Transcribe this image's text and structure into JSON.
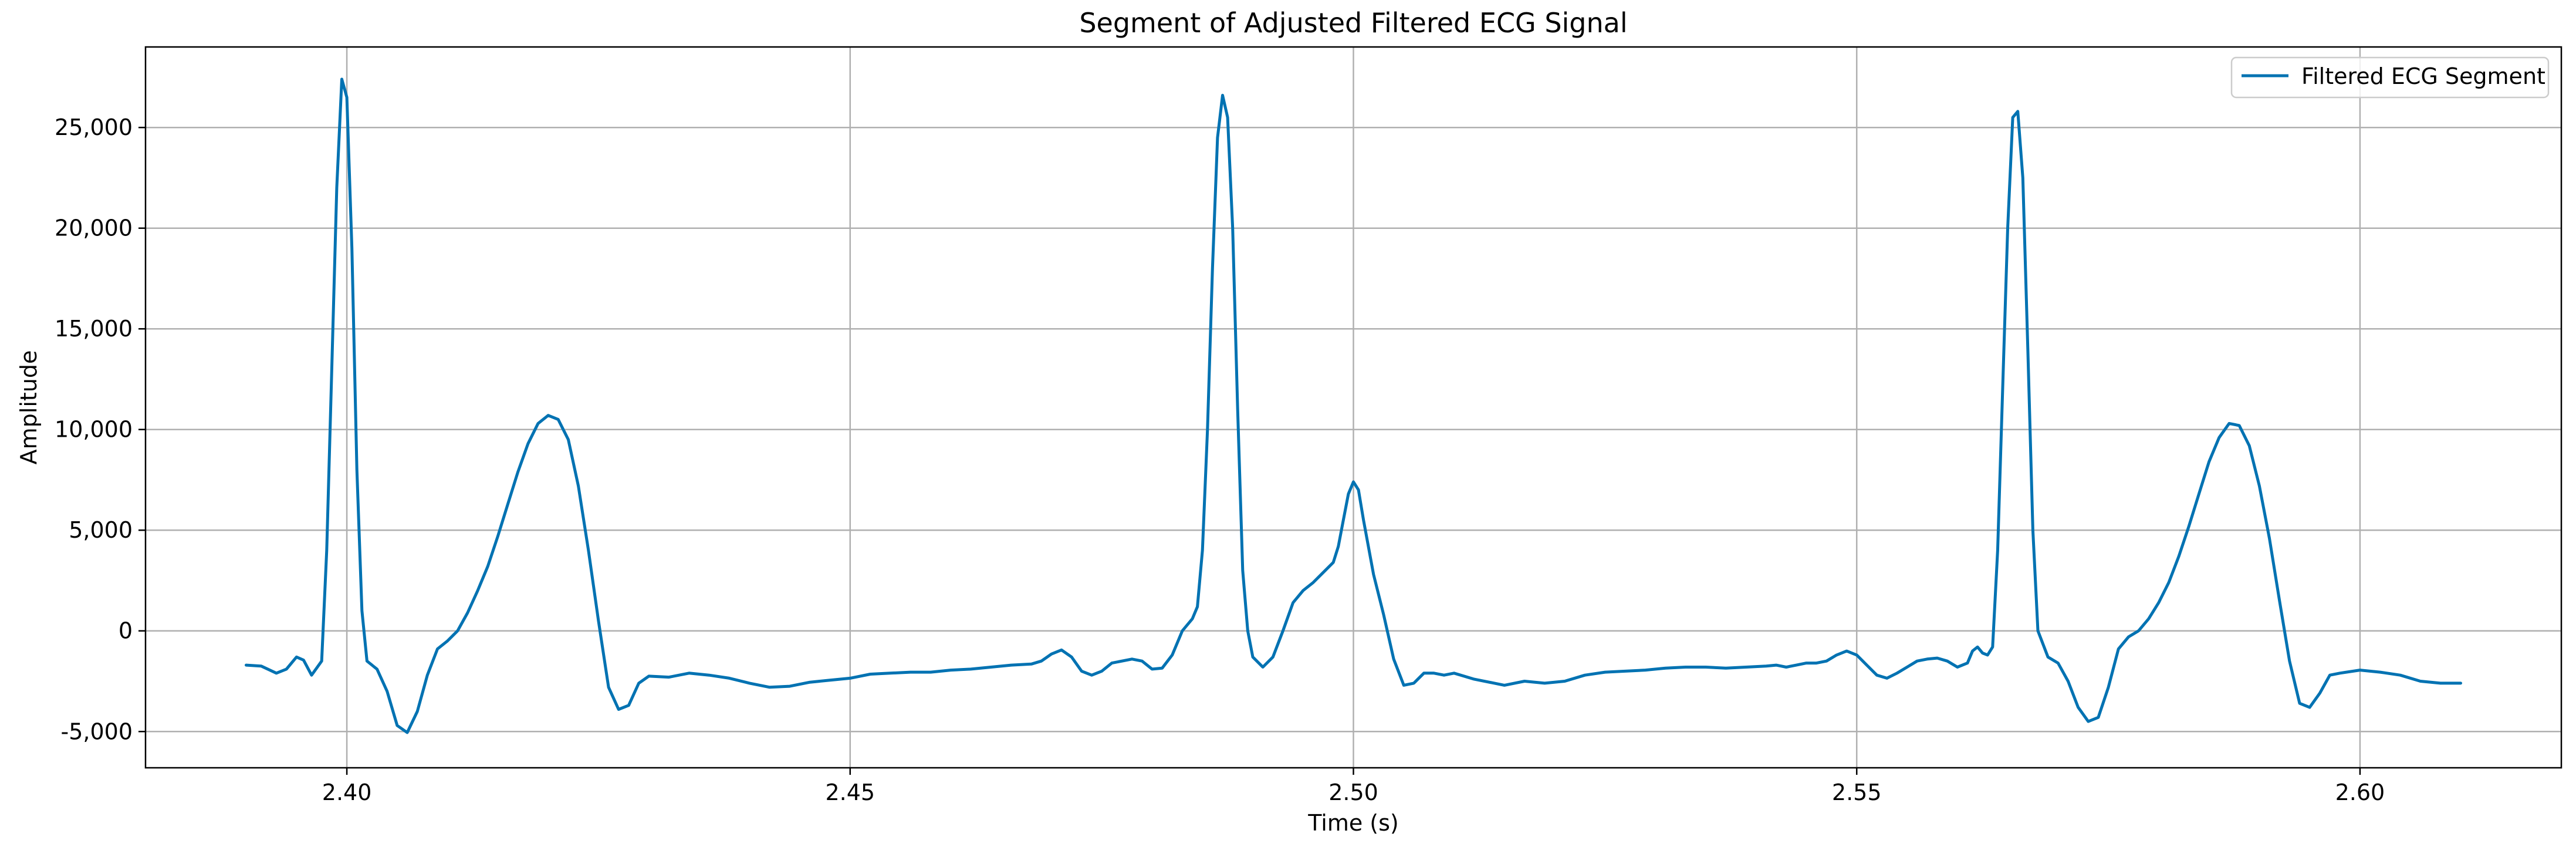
{
  "chart_data": {
    "type": "line",
    "title": "Segment of Adjusted Filtered ECG Signal",
    "xlabel": "Time (s)",
    "ylabel": "Amplitude",
    "xlim": [
      2.38,
      2.62
    ],
    "ylim": [
      -6800,
      29000
    ],
    "grid": true,
    "legend_position": "top-right",
    "x_ticks": [
      {
        "value": 2.4,
        "label": "2.40"
      },
      {
        "value": 2.45,
        "label": "2.45"
      },
      {
        "value": 2.5,
        "label": "2.50"
      },
      {
        "value": 2.55,
        "label": "2.55"
      },
      {
        "value": 2.6,
        "label": "2.60"
      }
    ],
    "y_ticks": [
      {
        "value": -5000,
        "label": "-5,000"
      },
      {
        "value": 0,
        "label": "0"
      },
      {
        "value": 5000,
        "label": "5,000"
      },
      {
        "value": 10000,
        "label": "10,000"
      },
      {
        "value": 15000,
        "label": "15,000"
      },
      {
        "value": 20000,
        "label": "20,000"
      },
      {
        "value": 25000,
        "label": "25,000"
      }
    ],
    "series": [
      {
        "name": "Filtered ECG Segment",
        "color": "#0072b2",
        "points": [
          [
            2.39,
            -1700
          ],
          [
            2.3915,
            -1750
          ],
          [
            2.393,
            -2100
          ],
          [
            2.394,
            -1900
          ],
          [
            2.395,
            -1300
          ],
          [
            2.3957,
            -1450
          ],
          [
            2.3965,
            -2200
          ],
          [
            2.3975,
            -1500
          ],
          [
            2.398,
            4000
          ],
          [
            2.3985,
            13000
          ],
          [
            2.399,
            22000
          ],
          [
            2.3995,
            27400
          ],
          [
            2.4,
            26500
          ],
          [
            2.4005,
            19000
          ],
          [
            2.401,
            8000
          ],
          [
            2.4015,
            1000
          ],
          [
            2.402,
            -1500
          ],
          [
            2.403,
            -1900
          ],
          [
            2.404,
            -3000
          ],
          [
            2.405,
            -4700
          ],
          [
            2.406,
            -5050
          ],
          [
            2.407,
            -4000
          ],
          [
            2.408,
            -2200
          ],
          [
            2.409,
            -900
          ],
          [
            2.41,
            -500
          ],
          [
            2.411,
            0
          ],
          [
            2.412,
            900
          ],
          [
            2.413,
            2000
          ],
          [
            2.414,
            3200
          ],
          [
            2.415,
            4700
          ],
          [
            2.416,
            6300
          ],
          [
            2.417,
            7900
          ],
          [
            2.418,
            9300
          ],
          [
            2.419,
            10300
          ],
          [
            2.42,
            10700
          ],
          [
            2.421,
            10500
          ],
          [
            2.422,
            9500
          ],
          [
            2.423,
            7200
          ],
          [
            2.424,
            4000
          ],
          [
            2.425,
            500
          ],
          [
            2.426,
            -2800
          ],
          [
            2.427,
            -3900
          ],
          [
            2.428,
            -3700
          ],
          [
            2.429,
            -2600
          ],
          [
            2.43,
            -2250
          ],
          [
            2.432,
            -2300
          ],
          [
            2.434,
            -2100
          ],
          [
            2.436,
            -2200
          ],
          [
            2.438,
            -2350
          ],
          [
            2.44,
            -2600
          ],
          [
            2.442,
            -2800
          ],
          [
            2.444,
            -2750
          ],
          [
            2.446,
            -2550
          ],
          [
            2.448,
            -2450
          ],
          [
            2.45,
            -2350
          ],
          [
            2.452,
            -2150
          ],
          [
            2.454,
            -2100
          ],
          [
            2.456,
            -2050
          ],
          [
            2.458,
            -2050
          ],
          [
            2.46,
            -1950
          ],
          [
            2.462,
            -1900
          ],
          [
            2.464,
            -1800
          ],
          [
            2.466,
            -1700
          ],
          [
            2.468,
            -1650
          ],
          [
            2.469,
            -1500
          ],
          [
            2.47,
            -1150
          ],
          [
            2.471,
            -950
          ],
          [
            2.472,
            -1300
          ],
          [
            2.473,
            -2000
          ],
          [
            2.474,
            -2200
          ],
          [
            2.475,
            -2000
          ],
          [
            2.476,
            -1600
          ],
          [
            2.478,
            -1400
          ],
          [
            2.479,
            -1500
          ],
          [
            2.48,
            -1900
          ],
          [
            2.481,
            -1850
          ],
          [
            2.482,
            -1200
          ],
          [
            2.483,
            0
          ],
          [
            2.484,
            600
          ],
          [
            2.4845,
            1200
          ],
          [
            2.485,
            4000
          ],
          [
            2.4855,
            10000
          ],
          [
            2.486,
            18000
          ],
          [
            2.4865,
            24500
          ],
          [
            2.487,
            26600
          ],
          [
            2.4875,
            25500
          ],
          [
            2.488,
            20000
          ],
          [
            2.4885,
            11000
          ],
          [
            2.489,
            3000
          ],
          [
            2.4895,
            0
          ],
          [
            2.49,
            -1300
          ],
          [
            2.491,
            -1800
          ],
          [
            2.492,
            -1300
          ],
          [
            2.493,
            0
          ],
          [
            2.494,
            1400
          ],
          [
            2.495,
            2000
          ],
          [
            2.496,
            2400
          ],
          [
            2.497,
            2900
          ],
          [
            2.498,
            3400
          ],
          [
            2.4985,
            4200
          ],
          [
            2.499,
            5500
          ],
          [
            2.4995,
            6800
          ],
          [
            2.5,
            7400
          ],
          [
            2.5005,
            7000
          ],
          [
            2.501,
            5500
          ],
          [
            2.502,
            2800
          ],
          [
            2.503,
            800
          ],
          [
            2.504,
            -1400
          ],
          [
            2.505,
            -2700
          ],
          [
            2.506,
            -2600
          ],
          [
            2.507,
            -2100
          ],
          [
            2.508,
            -2100
          ],
          [
            2.509,
            -2200
          ],
          [
            2.51,
            -2100
          ],
          [
            2.512,
            -2400
          ],
          [
            2.514,
            -2600
          ],
          [
            2.515,
            -2700
          ],
          [
            2.517,
            -2500
          ],
          [
            2.519,
            -2600
          ],
          [
            2.521,
            -2500
          ],
          [
            2.523,
            -2200
          ],
          [
            2.525,
            -2050
          ],
          [
            2.527,
            -2000
          ],
          [
            2.529,
            -1950
          ],
          [
            2.531,
            -1850
          ],
          [
            2.533,
            -1800
          ],
          [
            2.535,
            -1800
          ],
          [
            2.537,
            -1850
          ],
          [
            2.539,
            -1800
          ],
          [
            2.541,
            -1750
          ],
          [
            2.542,
            -1700
          ],
          [
            2.543,
            -1800
          ],
          [
            2.544,
            -1700
          ],
          [
            2.545,
            -1600
          ],
          [
            2.546,
            -1600
          ],
          [
            2.547,
            -1500
          ],
          [
            2.548,
            -1200
          ],
          [
            2.549,
            -1000
          ],
          [
            2.55,
            -1200
          ],
          [
            2.551,
            -1700
          ],
          [
            2.552,
            -2200
          ],
          [
            2.553,
            -2350
          ],
          [
            2.554,
            -2100
          ],
          [
            2.555,
            -1800
          ],
          [
            2.556,
            -1500
          ],
          [
            2.557,
            -1400
          ],
          [
            2.558,
            -1350
          ],
          [
            2.559,
            -1500
          ],
          [
            2.56,
            -1800
          ],
          [
            2.561,
            -1600
          ],
          [
            2.5615,
            -1000
          ],
          [
            2.562,
            -800
          ],
          [
            2.5625,
            -1100
          ],
          [
            2.563,
            -1200
          ],
          [
            2.5635,
            -800
          ],
          [
            2.564,
            4000
          ],
          [
            2.5645,
            12000
          ],
          [
            2.565,
            20000
          ],
          [
            2.5655,
            25500
          ],
          [
            2.566,
            25800
          ],
          [
            2.5665,
            22500
          ],
          [
            2.567,
            14000
          ],
          [
            2.5675,
            5000
          ],
          [
            2.568,
            0
          ],
          [
            2.569,
            -1300
          ],
          [
            2.57,
            -1600
          ],
          [
            2.571,
            -2500
          ],
          [
            2.572,
            -3800
          ],
          [
            2.573,
            -4500
          ],
          [
            2.574,
            -4300
          ],
          [
            2.575,
            -2800
          ],
          [
            2.576,
            -900
          ],
          [
            2.577,
            -300
          ],
          [
            2.578,
            0
          ],
          [
            2.579,
            600
          ],
          [
            2.58,
            1400
          ],
          [
            2.581,
            2400
          ],
          [
            2.582,
            3700
          ],
          [
            2.583,
            5200
          ],
          [
            2.584,
            6800
          ],
          [
            2.585,
            8400
          ],
          [
            2.586,
            9600
          ],
          [
            2.587,
            10300
          ],
          [
            2.588,
            10200
          ],
          [
            2.589,
            9200
          ],
          [
            2.59,
            7200
          ],
          [
            2.591,
            4600
          ],
          [
            2.592,
            1500
          ],
          [
            2.593,
            -1500
          ],
          [
            2.594,
            -3600
          ],
          [
            2.595,
            -3800
          ],
          [
            2.596,
            -3100
          ],
          [
            2.597,
            -2200
          ],
          [
            2.598,
            -2100
          ],
          [
            2.6,
            -1950
          ],
          [
            2.602,
            -2050
          ],
          [
            2.604,
            -2200
          ],
          [
            2.606,
            -2500
          ],
          [
            2.608,
            -2600
          ],
          [
            2.61,
            -2600
          ]
        ]
      }
    ]
  }
}
